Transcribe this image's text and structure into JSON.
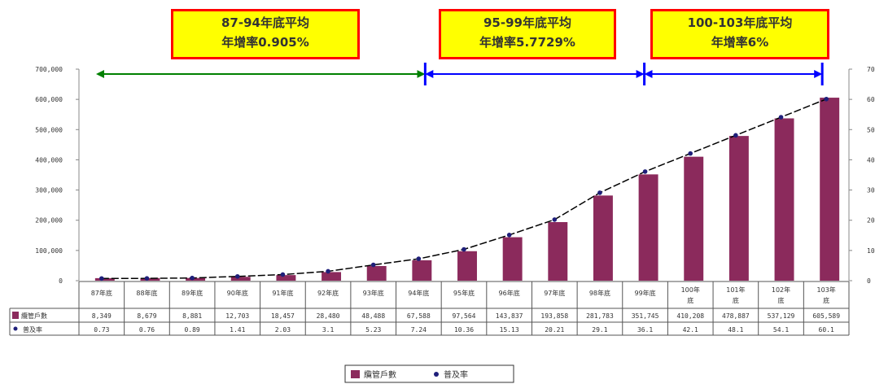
{
  "chart_data": {
    "type": "bar",
    "categories": [
      "87年底",
      "88年底",
      "89年底",
      "90年底",
      "91年底",
      "92年底",
      "93年底",
      "94年底",
      "95年底",
      "96年底",
      "97年底",
      "98年底",
      "99年底",
      "100年底",
      "101年底",
      "102年底",
      "103年底"
    ],
    "series": [
      {
        "name": "纜管戶數",
        "chart_type": "bar",
        "values": [
          8349,
          8679,
          8881,
          12703,
          18457,
          28480,
          48488,
          67588,
          97564,
          143837,
          193858,
          281783,
          351745,
          410208,
          478887,
          537129,
          605589
        ],
        "display": [
          "8,349",
          "8,679",
          "8,881",
          "12,703",
          "18,457",
          "28,480",
          "48,488",
          "67,588",
          "97,564",
          "143,837",
          "193,858",
          "281,783",
          "351,745",
          "410,208",
          "478,887",
          "537,129",
          "605,589"
        ]
      },
      {
        "name": "普及率",
        "chart_type": "line",
        "values": [
          0.73,
          0.76,
          0.89,
          1.41,
          2.03,
          3.1,
          5.23,
          7.24,
          10.36,
          15.13,
          20.21,
          29.1,
          36.1,
          42.1,
          48.1,
          54.1,
          60.1
        ],
        "display": [
          "0.73",
          "0.76",
          "0.89",
          "1.41",
          "2.03",
          "3.1",
          "5.23",
          "7.24",
          "10.36",
          "15.13",
          "20.21",
          "29.1",
          "36.1",
          "42.1",
          "48.1",
          "54.1",
          "60.1"
        ]
      }
    ],
    "y_ticks": [
      "700,000",
      "600,000",
      "500,000",
      "400,000",
      "300,000",
      "200,000",
      "100,000",
      "0"
    ],
    "y_right_ticks": [
      "70",
      "60",
      "50",
      "40",
      "30",
      "20",
      "10",
      "0"
    ],
    "ylim": [
      0,
      700000
    ],
    "y2lim": [
      0,
      70
    ],
    "legend_position": "bottom",
    "colors": {
      "bar": "#8b2a5c",
      "line": "#000000",
      "marker": "#1f1f7a",
      "green_arrow": "#008000",
      "blue_arrow": "#0000ff",
      "box_fill": "#ffff00",
      "box_border": "#ff0000"
    },
    "annotations": [
      {
        "line1": "87-94年底平均",
        "line2": "年增率0.905%"
      },
      {
        "line1": "95-99年底平均",
        "line2": "年增率5.7729%"
      },
      {
        "line1": "100-103年底平均",
        "line2": "年增率6%"
      }
    ]
  }
}
